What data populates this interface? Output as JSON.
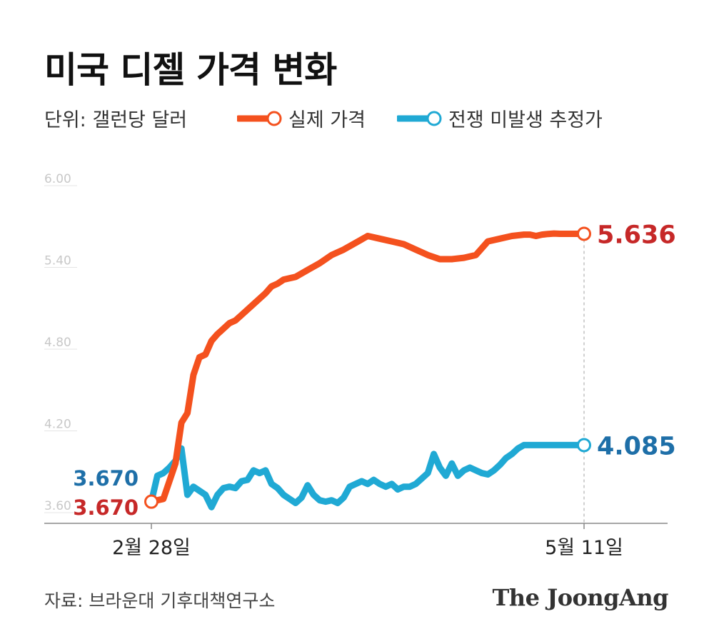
{
  "title": "미국 디젤 가격 변화",
  "unit_label": "단위: 갤런당 달러",
  "source": "자료: 브라운대 기후대책연구소",
  "logo": "The JoongAng",
  "colors": {
    "actual": "#f4511e",
    "estimate": "#20a9d4",
    "actual_label": "#c62828",
    "estimate_label": "#1e6fa8",
    "axis": "#888888",
    "tick": "#c8c8c8"
  },
  "chart_data": {
    "type": "line",
    "title": "미국 디젤 가격 변화",
    "ylim": [
      3.6,
      6.0
    ],
    "yticks": [
      "6.00",
      "5.40",
      "4.80",
      "4.20",
      "3.60"
    ],
    "ytick_values": [
      6.0,
      5.4,
      4.8,
      4.2,
      3.6
    ],
    "xlim": [
      0,
      72
    ],
    "xtick_labels": [
      {
        "x": 0,
        "label": "2월 28일"
      },
      {
        "x": 72,
        "label": "5월 11일"
      }
    ],
    "legend_position": "top",
    "series": [
      {
        "name": "실제 가격",
        "start_label": "3.670",
        "end_label": "5.636",
        "x": [
          0,
          2,
          4,
          5,
          6,
          7,
          8,
          9,
          10,
          11,
          12,
          13,
          14,
          15,
          16,
          17,
          18,
          19,
          20,
          21,
          22,
          24,
          26,
          28,
          30,
          32,
          34,
          36,
          38,
          40,
          42,
          44,
          46,
          48,
          50,
          52,
          54,
          56,
          58,
          60,
          62,
          63,
          64,
          65,
          66,
          67,
          68,
          69,
          70,
          71,
          72
        ],
        "values": [
          3.67,
          3.69,
          3.95,
          4.25,
          4.32,
          4.6,
          4.73,
          4.75,
          4.85,
          4.9,
          4.94,
          4.98,
          5.0,
          5.04,
          5.08,
          5.12,
          5.16,
          5.2,
          5.25,
          5.27,
          5.3,
          5.32,
          5.37,
          5.42,
          5.48,
          5.52,
          5.57,
          5.62,
          5.6,
          5.58,
          5.56,
          5.52,
          5.48,
          5.45,
          5.45,
          5.46,
          5.48,
          5.58,
          5.6,
          5.62,
          5.63,
          5.63,
          5.62,
          5.63,
          5.635,
          5.638,
          5.636,
          5.636,
          5.636,
          5.636,
          5.636
        ]
      },
      {
        "name": "전쟁 미발생 추정가",
        "start_label": "3.670",
        "end_label": "4.085",
        "x": [
          0,
          1,
          2,
          3,
          4,
          5,
          6,
          7,
          8,
          9,
          10,
          11,
          12,
          13,
          14,
          15,
          16,
          17,
          18,
          19,
          20,
          21,
          22,
          23,
          24,
          25,
          26,
          27,
          28,
          29,
          30,
          31,
          32,
          33,
          34,
          35,
          36,
          37,
          38,
          39,
          40,
          41,
          42,
          43,
          44,
          45,
          46,
          47,
          48,
          49,
          50,
          51,
          52,
          53,
          54,
          55,
          56,
          57,
          58,
          59,
          60,
          61,
          62,
          63,
          64,
          65,
          66,
          67,
          68,
          69,
          70,
          71,
          72
        ],
        "values": [
          3.67,
          3.86,
          3.88,
          3.92,
          3.97,
          4.06,
          3.72,
          3.78,
          3.75,
          3.72,
          3.63,
          3.72,
          3.77,
          3.78,
          3.77,
          3.82,
          3.83,
          3.9,
          3.88,
          3.9,
          3.8,
          3.77,
          3.72,
          3.69,
          3.66,
          3.7,
          3.79,
          3.72,
          3.68,
          3.67,
          3.68,
          3.66,
          3.7,
          3.78,
          3.8,
          3.82,
          3.8,
          3.83,
          3.8,
          3.78,
          3.8,
          3.76,
          3.78,
          3.78,
          3.8,
          3.84,
          3.88,
          4.02,
          3.92,
          3.86,
          3.95,
          3.86,
          3.9,
          3.92,
          3.9,
          3.88,
          3.87,
          3.9,
          3.94,
          3.99,
          4.02,
          4.06,
          4.085,
          4.085,
          4.085,
          4.085,
          4.085,
          4.085,
          4.085,
          4.085,
          4.085,
          4.085,
          4.085
        ]
      }
    ]
  }
}
